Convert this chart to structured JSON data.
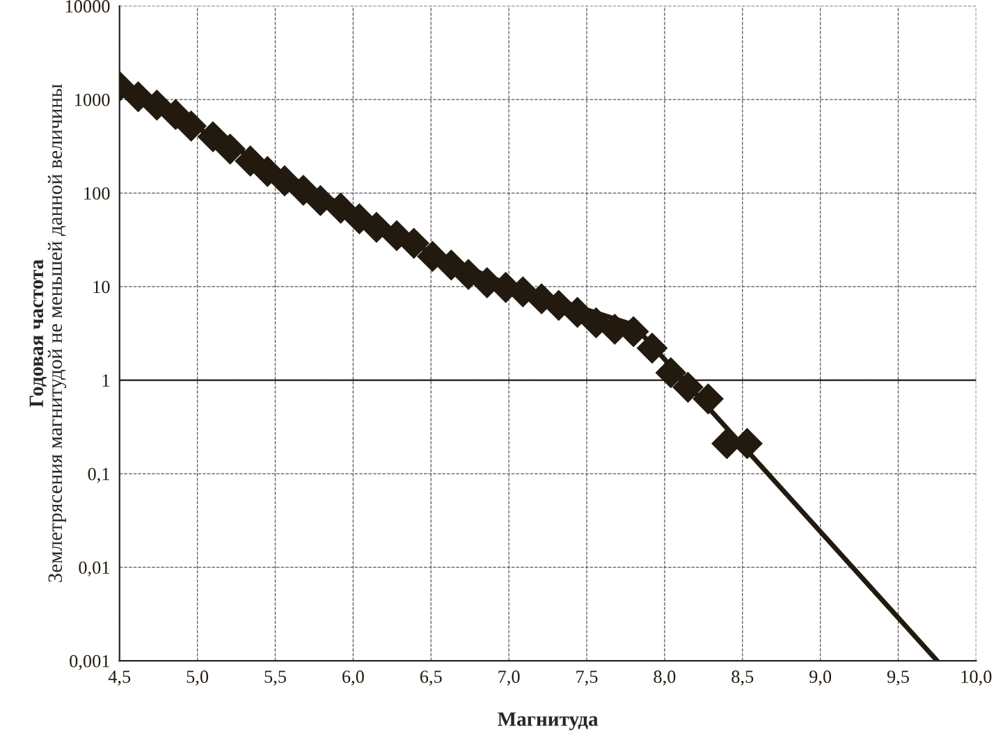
{
  "chart_data": {
    "type": "scatter",
    "xlabel": "Магнитуда",
    "ylabel": "Годовая частота\nЗемлетрясения магнитудой не меньшей данной величины",
    "log": "y",
    "grid": true,
    "xlim": [
      4.5,
      10.0
    ],
    "xticks": [
      {
        "value": 4.5,
        "label": "4,5"
      },
      {
        "value": 5.0,
        "label": "5,0"
      },
      {
        "value": 5.5,
        "label": "5,5"
      },
      {
        "value": 6.0,
        "label": "6,0"
      },
      {
        "value": 6.5,
        "label": "6,5"
      },
      {
        "value": 7.0,
        "label": "7,0"
      },
      {
        "value": 7.5,
        "label": "7,5"
      },
      {
        "value": 8.0,
        "label": "8,0"
      },
      {
        "value": 8.5,
        "label": "8,5"
      },
      {
        "value": 9.0,
        "label": "9,0"
      },
      {
        "value": 9.5,
        "label": "9,5"
      },
      {
        "value": 10.0,
        "label": "10,0"
      }
    ],
    "ylim": [
      0.001,
      10000
    ],
    "yticks": [
      {
        "value": 0.001,
        "label": "0,001"
      },
      {
        "value": 0.01,
        "label": "0,01"
      },
      {
        "value": 0.1,
        "label": "0,1"
      },
      1,
      10,
      100,
      1000,
      10000
    ],
    "ref_lines": [
      {
        "axis": "y",
        "value": 1,
        "color": "#231a0f",
        "line_style": "solid"
      }
    ],
    "series": [
      {
        "type": "line",
        "line_style": "solid",
        "marker": "none",
        "color": "#231a0f",
        "x": [
          4.5,
          6.5,
          7.0,
          7.8,
          9.75
        ],
        "values": [
          1380,
          23,
          10.5,
          3.9,
          0.001
        ]
      },
      {
        "marker": "diamond",
        "color": "#231a0f",
        "x": [
          4.5,
          4.62,
          4.74,
          4.86,
          4.96,
          5.1,
          5.21,
          5.34,
          5.45,
          5.56,
          5.68,
          5.79,
          5.92,
          6.04,
          6.15,
          6.28,
          6.39,
          6.51,
          6.63,
          6.74,
          6.86,
          6.98,
          7.09,
          7.21,
          7.32,
          7.44,
          7.56,
          7.68,
          7.8,
          7.92,
          8.04,
          8.15,
          8.28,
          8.4,
          8.53
        ],
        "values": [
          1380,
          1070,
          870,
          690,
          520,
          400,
          295,
          220,
          170,
          135,
          107,
          83,
          69,
          53,
          43,
          35,
          29,
          21,
          17,
          13.5,
          11,
          9.8,
          8.8,
          7.4,
          6.3,
          5.3,
          4.1,
          3.5,
          3.3,
          2.2,
          1.2,
          0.84,
          0.63,
          0.21,
          0.21
        ]
      }
    ]
  }
}
